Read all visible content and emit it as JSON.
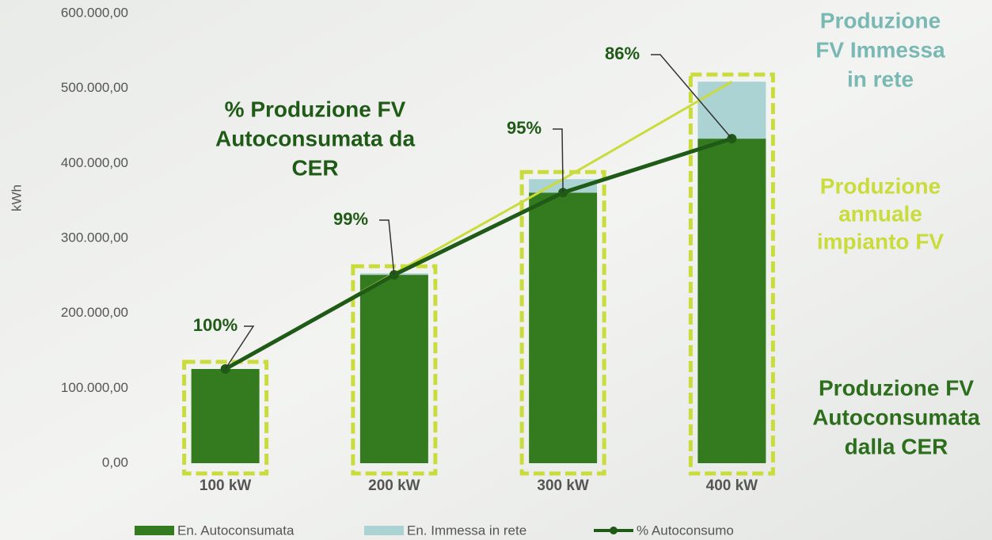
{
  "chart_data": {
    "type": "bar",
    "y_label": "kWh",
    "categories": [
      "100 kW",
      "200 kW",
      "300 kW",
      "400 kW"
    ],
    "series": [
      {
        "name": "En. Autoconsumata",
        "color": "#347a1f",
        "values": [
          125700,
          251300,
          361000,
          433000
        ]
      },
      {
        "name": "En. Immessa in rete",
        "color": "#acd3d3",
        "values": [
          0,
          2000,
          18000,
          76000
        ]
      },
      {
        "name": "% Autoconsumo",
        "type": "line",
        "color": "#1f5a17",
        "values": [
          100,
          99,
          95,
          86
        ],
        "value_labels": [
          "100%",
          "99%",
          "95%",
          "86%"
        ]
      }
    ],
    "ylim": [
      0,
      600000
    ],
    "yticks": [
      {
        "value": 0,
        "label": "0,00"
      },
      {
        "value": 100000,
        "label": "100.000,00"
      },
      {
        "value": 200000,
        "label": "200.000,00"
      },
      {
        "value": 300000,
        "label": "300.000,00"
      },
      {
        "value": 400000,
        "label": "400.000,00"
      },
      {
        "value": 500000,
        "label": "500.000,00"
      },
      {
        "value": 600000,
        "label": "600.000,00"
      }
    ],
    "annotations": [
      {
        "lines": [
          "% Produzione FV",
          "Autoconsumata da",
          "CER"
        ],
        "color": "#1f5a17"
      },
      {
        "lines": [
          "Produzione",
          "FV Immessa",
          "in rete"
        ],
        "color": "#7ab8b4"
      },
      {
        "lines": [
          "Produzione",
          "annuale",
          "impianto FV"
        ],
        "color": "#c9dc3c"
      },
      {
        "lines": [
          "Produzione FV",
          "Autoconsumata",
          "dalla CER"
        ],
        "color": "#2c6e1c"
      }
    ],
    "frame_color": "#c9dc3c"
  }
}
